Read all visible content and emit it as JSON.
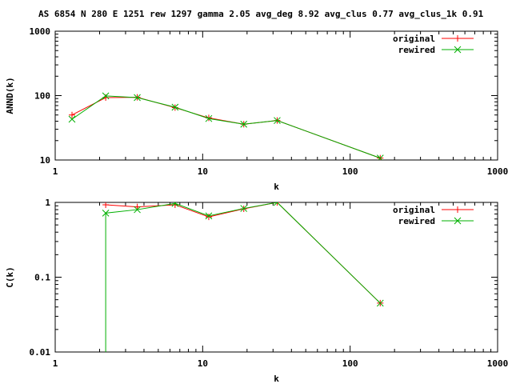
{
  "figure_title": "AS 6854 N 280 E 1251 rew 1297 gamma 2.05 avg_deg 8.92 avg_clus 0.77 avg_clus_1k 0.91",
  "colors": {
    "original": "#ff0000",
    "rewired": "#00b000",
    "frame": "#000000",
    "background": "#ffffff"
  },
  "chart_data": [
    {
      "type": "line",
      "xlabel": "k",
      "ylabel": "ANND(k)",
      "xscale": "log",
      "yscale": "log",
      "xlim": [
        1,
        1000
      ],
      "ylim": [
        10,
        1000
      ],
      "xticks": [
        1,
        10,
        100,
        1000
      ],
      "xtick_labels": [
        "1",
        "10",
        "100",
        "1000"
      ],
      "yticks": [
        10,
        100,
        1000
      ],
      "ytick_labels": [
        "10",
        "100",
        "1000"
      ],
      "grid": false,
      "legend": "top-right",
      "series": [
        {
          "name": "original",
          "marker": "plus",
          "x": [
            1.3,
            2.2,
            3.6,
            6.5,
            11,
            19,
            32,
            160
          ],
          "y": [
            50,
            93,
            94,
            65,
            45,
            36,
            41,
            10.7
          ]
        },
        {
          "name": "rewired",
          "marker": "x",
          "x": [
            1.3,
            2.2,
            3.6,
            6.5,
            11,
            19,
            32,
            160
          ],
          "y": [
            43,
            99,
            93,
            66,
            44,
            36,
            41,
            10.7
          ]
        }
      ]
    },
    {
      "type": "line",
      "xlabel": "k",
      "ylabel": "C(k)",
      "xscale": "log",
      "yscale": "log",
      "xlim": [
        1,
        1000
      ],
      "ylim": [
        0.01,
        1
      ],
      "xticks": [
        1,
        10,
        100,
        1000
      ],
      "xtick_labels": [
        "1",
        "10",
        "100",
        "1000"
      ],
      "yticks": [
        0.01,
        0.1,
        1
      ],
      "ytick_labels": [
        "0.01",
        "0.1",
        "1"
      ],
      "grid": false,
      "legend": "top-right",
      "series": [
        {
          "name": "original",
          "marker": "plus",
          "x": [
            2.2,
            3.6,
            6.5,
            11,
            19,
            32,
            160
          ],
          "y": [
            0.93,
            0.87,
            0.93,
            0.64,
            0.82,
            1.0,
            0.045
          ]
        },
        {
          "name": "rewired",
          "marker": "x",
          "x": [
            2.2,
            2.2,
            3.6,
            6.5,
            11,
            19,
            32,
            160
          ],
          "y": [
            0.01,
            0.72,
            0.8,
            0.97,
            0.66,
            0.83,
            1.0,
            0.045
          ]
        }
      ]
    }
  ]
}
